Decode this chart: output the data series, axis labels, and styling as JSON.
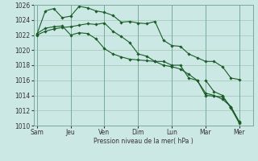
{
  "background_color": "#cce8e4",
  "grid_color": "#aaccbb",
  "line_color": "#1a5c28",
  "marker_color": "#1a5c28",
  "xlabel": "Pression niveau de la mer( hPa )",
  "ylim": [
    1010,
    1026
  ],
  "yticks": [
    1010,
    1012,
    1014,
    1016,
    1018,
    1020,
    1022,
    1024,
    1026
  ],
  "xtick_labels": [
    "Sam",
    "Jeu",
    "Ven",
    "Dim",
    "Lun",
    "Mar",
    "Mer"
  ],
  "xtick_positions": [
    0,
    2,
    4,
    6,
    8,
    10,
    12
  ],
  "series": [
    {
      "x": [
        0,
        0.5,
        1.0,
        1.5,
        2.0,
        2.5,
        3.0,
        3.5,
        4.0,
        4.5,
        5.0,
        5.5,
        6.0,
        6.5,
        7.0,
        7.5,
        8.0,
        8.5,
        9.0,
        9.5,
        10.0,
        10.5,
        11.0,
        11.5,
        12.0
      ],
      "y": [
        1022.0,
        1022.5,
        1022.8,
        1023.0,
        1023.1,
        1023.3,
        1023.5,
        1023.4,
        1023.6,
        1022.5,
        1021.8,
        1021.0,
        1019.5,
        1019.2,
        1018.5,
        1018.0,
        1017.8,
        1017.5,
        1016.8,
        1016.0,
        1014.0,
        1013.9,
        1013.8,
        1012.5,
        1010.5
      ]
    },
    {
      "x": [
        0,
        0.5,
        1.0,
        1.5,
        2.0,
        2.5,
        3.0,
        3.5,
        4.0,
        4.5,
        5.0,
        5.5,
        6.0,
        6.5,
        7.0,
        7.5,
        8.0,
        8.5,
        9.0,
        9.5,
        10.0,
        10.5,
        11.0,
        11.5,
        12.0
      ],
      "y": [
        1022.1,
        1025.2,
        1025.5,
        1024.3,
        1024.5,
        1025.8,
        1025.6,
        1025.2,
        1025.0,
        1024.6,
        1023.7,
        1023.8,
        1023.6,
        1023.5,
        1023.8,
        1021.3,
        1020.6,
        1020.5,
        1019.5,
        1019.0,
        1018.5,
        1018.5,
        1017.8,
        1016.3,
        1016.1
      ]
    },
    {
      "x": [
        0,
        0.5,
        1.0,
        1.5,
        2.0,
        2.5,
        3.0,
        3.5,
        4.0,
        4.5,
        5.0,
        5.5,
        6.0,
        6.5,
        7.0,
        7.5,
        8.0,
        8.5,
        9.0,
        9.5,
        10.0,
        10.5,
        11.0,
        11.5,
        12.0
      ],
      "y": [
        1022.2,
        1022.9,
        1023.1,
        1023.2,
        1022.0,
        1022.3,
        1022.2,
        1021.5,
        1020.2,
        1019.5,
        1019.1,
        1018.8,
        1018.7,
        1018.6,
        1018.5,
        1018.5,
        1018.0,
        1018.0,
        1016.3,
        1016.0,
        1014.3,
        1014.0,
        1013.5,
        1012.5,
        1010.4
      ]
    },
    {
      "x": [
        10.0,
        10.5,
        11.0,
        11.5,
        12.0
      ],
      "y": [
        1016.0,
        1014.5,
        1014.0,
        1012.3,
        1010.3
      ]
    }
  ]
}
